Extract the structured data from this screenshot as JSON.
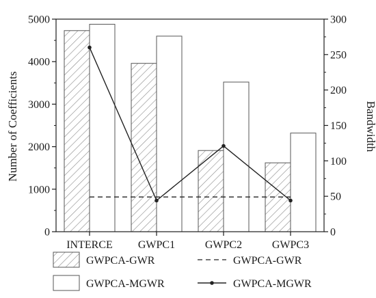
{
  "chart_data": {
    "type": "bar",
    "categories": [
      "INTERCE",
      "GWPC1",
      "GWPC2",
      "GWPC3"
    ],
    "series": [
      {
        "name": "GWPCA-GWR",
        "kind": "bar",
        "axis": "left",
        "pattern": "hatch",
        "values": [
          4730,
          3960,
          1910,
          1620
        ]
      },
      {
        "name": "GWPCA-MGWR",
        "kind": "bar",
        "axis": "left",
        "pattern": "plain",
        "values": [
          4880,
          4600,
          3520,
          2320
        ]
      },
      {
        "name": "GWPCA-GWR",
        "kind": "line",
        "axis": "right",
        "style": "dashed",
        "values": [
          49,
          49,
          49,
          49
        ]
      },
      {
        "name": "GWPCA-MGWR",
        "kind": "line",
        "axis": "right",
        "style": "solid-marker",
        "values": [
          260,
          44,
          121,
          44
        ]
      }
    ],
    "ylabel": "Number of Coefficients",
    "y2label": "Bandwidth",
    "ylim": [
      0,
      5000
    ],
    "y2lim": [
      0,
      300
    ],
    "yticks": [
      0,
      1000,
      2000,
      3000,
      4000,
      5000
    ],
    "y2ticks": [
      0,
      50,
      100,
      150,
      200,
      250,
      300
    ],
    "grid": false,
    "legend_position": "bottom",
    "colors": {
      "axis": "#1a1a1a",
      "bar_edge": "#555555",
      "line": "#222222"
    }
  }
}
